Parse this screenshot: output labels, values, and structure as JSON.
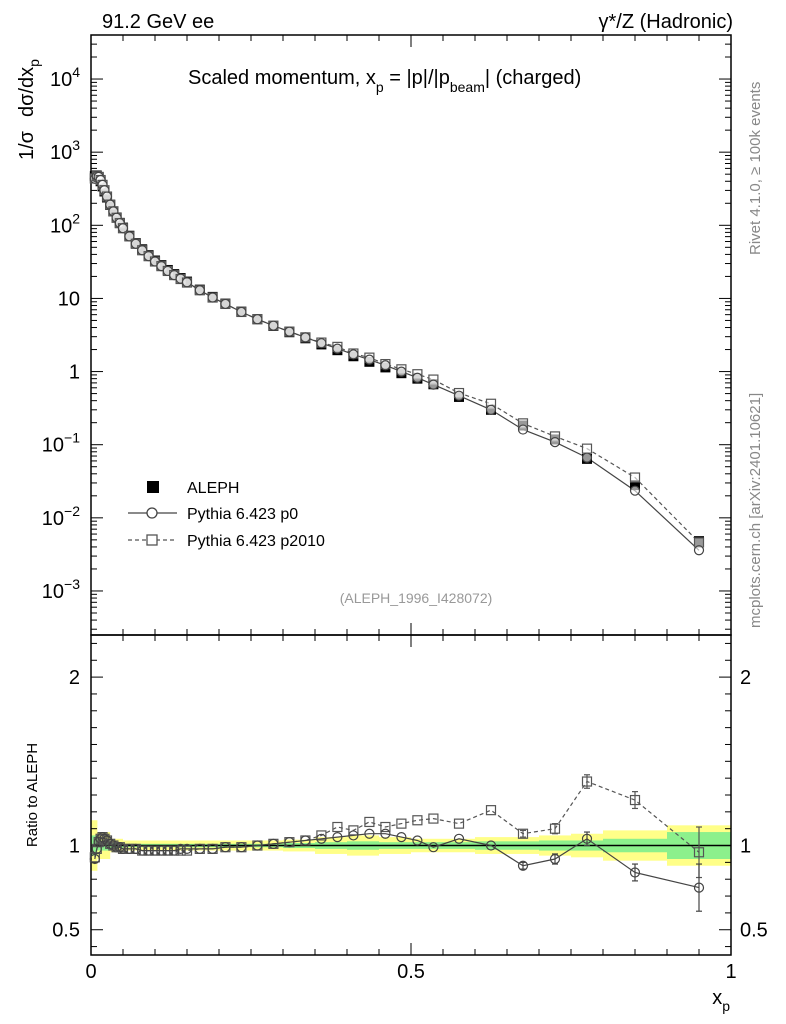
{
  "header": {
    "left": "91.2 GeV ee",
    "right": "γ*/Z (Hadronic)"
  },
  "side_labels": {
    "rivet": "Rivet 4.1.0, ≥ 100k events",
    "mcplots": "mcplots.cern.ch [arXiv:2401.10621]"
  },
  "chart_data": [
    {
      "type": "scatter",
      "panel": "main",
      "title": "Scaled momentum, x_p = |p|/|p_beam| (charged)",
      "title_parts": {
        "a": "Scaled momentum, x",
        "sub1": "p",
        "b": " = |p|/|p",
        "sub2": "beam",
        "c": "| (charged)"
      },
      "ylabel": "1/σ dσ/dx_p",
      "ylabel_parts": {
        "a": "1/σ",
        "b": "dσ/dx",
        "sub": "p"
      },
      "yscale": "log",
      "ylim": [
        0.00025,
        40000
      ],
      "xlim": [
        0,
        1
      ],
      "yticks": [
        {
          "v": 0.001,
          "base": "10",
          "exp": "−3"
        },
        {
          "v": 0.01,
          "base": "10",
          "exp": "−2"
        },
        {
          "v": 0.1,
          "base": "10",
          "exp": "−1"
        },
        {
          "v": 1,
          "base": "1",
          "exp": ""
        },
        {
          "v": 10,
          "base": "10",
          "exp": ""
        },
        {
          "v": 100,
          "base": "10",
          "exp": "2"
        },
        {
          "v": 1000,
          "base": "10",
          "exp": "3"
        },
        {
          "v": 10000,
          "base": "10",
          "exp": "4"
        }
      ],
      "analysis_label": "(ALEPH_1996_I428072)",
      "legend": {
        "position": "center-left",
        "entries": [
          "ALEPH",
          "Pythia 6.423 p0",
          "Pythia 6.423 p2010"
        ]
      },
      "x": [
        0.006,
        0.009,
        0.012,
        0.015,
        0.018,
        0.021,
        0.025,
        0.03,
        0.035,
        0.04,
        0.045,
        0.05,
        0.06,
        0.07,
        0.08,
        0.09,
        0.1,
        0.11,
        0.12,
        0.13,
        0.14,
        0.15,
        0.17,
        0.19,
        0.21,
        0.235,
        0.26,
        0.285,
        0.31,
        0.335,
        0.36,
        0.385,
        0.41,
        0.435,
        0.46,
        0.485,
        0.51,
        0.535,
        0.575,
        0.625,
        0.675,
        0.725,
        0.775,
        0.85,
        0.95
      ],
      "series": [
        {
          "name": "ALEPH",
          "values": [
            470,
            480,
            450,
            400,
            340,
            290,
            240,
            190,
            155,
            128,
            108,
            93,
            72,
            57,
            47,
            39,
            33,
            28.5,
            24.5,
            21.5,
            19,
            17,
            13.2,
            10.5,
            8.5,
            6.6,
            5.2,
            4.2,
            3.45,
            2.85,
            2.35,
            1.96,
            1.62,
            1.36,
            1.14,
            0.95,
            0.8,
            0.67,
            0.45,
            0.3,
            0.183,
            0.118,
            0.064,
            0.028,
            0.0048
          ],
          "yerr_rel": [
            0.05,
            0.04,
            0.03,
            0.02,
            0.02,
            0.02,
            0.02,
            0.02,
            0.02,
            0.02,
            0.02,
            0.02,
            0.02,
            0.02,
            0.02,
            0.02,
            0.02,
            0.02,
            0.02,
            0.02,
            0.02,
            0.02,
            0.02,
            0.02,
            0.02,
            0.02,
            0.02,
            0.02,
            0.03,
            0.03,
            0.03,
            0.03,
            0.03,
            0.03,
            0.03,
            0.03,
            0.04,
            0.04,
            0.04,
            0.05,
            0.05,
            0.05,
            0.06,
            0.07,
            0.12
          ]
        },
        {
          "name": "Pythia 6.423 p0",
          "ratio": [
            0.92,
            0.98,
            1.02,
            1.04,
            1.05,
            1.04,
            1.03,
            1.01,
            1.0,
            0.99,
            0.99,
            0.98,
            0.98,
            0.98,
            0.97,
            0.97,
            0.97,
            0.97,
            0.97,
            0.97,
            0.98,
            0.98,
            0.98,
            0.98,
            0.99,
            0.99,
            1.0,
            1.01,
            1.02,
            1.03,
            1.04,
            1.05,
            1.06,
            1.07,
            1.07,
            1.05,
            1.03,
            0.99,
            1.04,
            1.0,
            0.88,
            0.92,
            1.04,
            0.84,
            0.75
          ],
          "ratio_err": [
            0.0,
            0.0,
            0.0,
            0.0,
            0.0,
            0.0,
            0.0,
            0.0,
            0.0,
            0.0,
            0.0,
            0.0,
            0.0,
            0.0,
            0.0,
            0.0,
            0.0,
            0.0,
            0.0,
            0.0,
            0.0,
            0.0,
            0.0,
            0.0,
            0.0,
            0.0,
            0.0,
            0.0,
            0.0,
            0.0,
            0.0,
            0.0,
            0.0,
            0.0,
            0.0,
            0.0,
            0.0,
            0.0,
            0.0,
            0.0,
            0.02,
            0.03,
            0.04,
            0.05,
            0.14
          ]
        },
        {
          "name": "Pythia 6.423 p2010",
          "ratio": [
            0.93,
            0.98,
            1.02,
            1.04,
            1.05,
            1.04,
            1.03,
            1.01,
            1.0,
            0.99,
            0.99,
            0.98,
            0.98,
            0.98,
            0.97,
            0.97,
            0.97,
            0.97,
            0.97,
            0.97,
            0.97,
            0.97,
            0.98,
            0.98,
            0.99,
            0.99,
            1.0,
            1.01,
            1.02,
            1.03,
            1.06,
            1.11,
            1.09,
            1.14,
            1.11,
            1.13,
            1.15,
            1.16,
            1.13,
            1.21,
            1.07,
            1.1,
            1.38,
            1.27,
            0.96
          ],
          "ratio_err": [
            0.0,
            0.0,
            0.0,
            0.0,
            0.0,
            0.0,
            0.0,
            0.0,
            0.0,
            0.0,
            0.0,
            0.0,
            0.0,
            0.0,
            0.0,
            0.0,
            0.0,
            0.0,
            0.0,
            0.0,
            0.0,
            0.0,
            0.0,
            0.0,
            0.0,
            0.0,
            0.0,
            0.0,
            0.0,
            0.0,
            0.0,
            0.0,
            0.0,
            0.0,
            0.0,
            0.0,
            0.0,
            0.0,
            0.0,
            0.0,
            0.02,
            0.03,
            0.04,
            0.05,
            0.15
          ]
        }
      ]
    },
    {
      "type": "line",
      "panel": "ratio",
      "ylabel": "Ratio to ALEPH",
      "xlabel": "x_p",
      "xlabel_parts": {
        "a": "x",
        "sub": "p"
      },
      "ylim": [
        0.35,
        2.25
      ],
      "xlim": [
        0,
        1
      ],
      "yticks": [
        {
          "v": 0.5,
          "label": "0.5"
        },
        {
          "v": 1,
          "label": "1"
        },
        {
          "v": 2,
          "label": "2"
        }
      ],
      "xticks": [
        {
          "v": 0,
          "label": "0"
        },
        {
          "v": 0.5,
          "label": "0.5"
        },
        {
          "v": 1,
          "label": "1"
        }
      ],
      "uncertainty_bands": {
        "edges": [
          0,
          0.01,
          0.03,
          0.05,
          0.1,
          0.2,
          0.3,
          0.35,
          0.4,
          0.45,
          0.5,
          0.55,
          0.6,
          0.65,
          0.7,
          0.75,
          0.8,
          0.9,
          1.0
        ],
        "stat_half_width": [
          0.06,
          0.03,
          0.015,
          0.01,
          0.01,
          0.01,
          0.015,
          0.02,
          0.025,
          0.02,
          0.02,
          0.02,
          0.025,
          0.025,
          0.03,
          0.03,
          0.04,
          0.08,
          0.15
        ],
        "total_half_width": [
          0.15,
          0.08,
          0.04,
          0.03,
          0.03,
          0.03,
          0.035,
          0.05,
          0.06,
          0.05,
          0.04,
          0.04,
          0.05,
          0.05,
          0.06,
          0.07,
          0.09,
          0.12,
          0.3
        ],
        "band_colors": {
          "total": "#ffff88",
          "stat": "#8cf08c"
        }
      }
    }
  ],
  "colors": {
    "data": "#000000",
    "p0": "#444444",
    "p2010": "#555555"
  }
}
